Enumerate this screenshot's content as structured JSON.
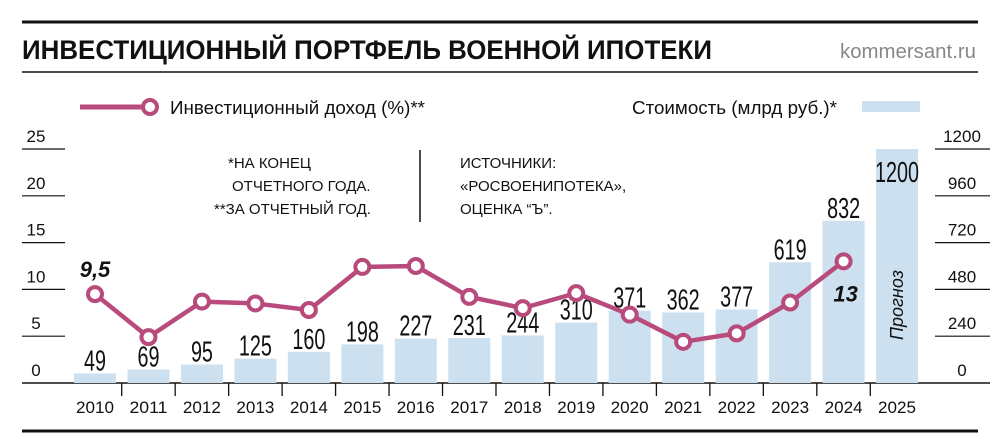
{
  "header": {
    "title": "ИНВЕСТИЦИОННЫЙ ПОРТФЕЛЬ ВОЕННОЙ ИПОТЕКИ",
    "source_site": "kommersant.ru"
  },
  "notes": {
    "footnote_lines": [
      "*НА КОНЕЦ",
      "ОТЧЕТНОГО ГОДА.",
      "**ЗА ОТЧЕТНЫЙ ГОД."
    ],
    "sources_lines": [
      "ИСТОЧНИКИ:",
      "«РОСВОЕНИПОТЕКА»,",
      "ОЦЕНКА “Ъ”."
    ]
  },
  "colors": {
    "line": "#b84a7c",
    "bar": "#cde0ef",
    "text": "#111111"
  },
  "chart_data": {
    "type": "bar+line",
    "title": "ИНВЕСТИЦИОННЫЙ ПОРТФЕЛЬ ВОЕННОЙ ИПОТЕКИ",
    "categories": [
      "2010",
      "2011",
      "2012",
      "2013",
      "2014",
      "2015",
      "2016",
      "2017",
      "2018",
      "2019",
      "2020",
      "2021",
      "2022",
      "2023",
      "2024",
      "2025"
    ],
    "series": [
      {
        "name": "Стоимость (млрд руб.)*",
        "type": "bar",
        "axis": "right",
        "values": [
          49,
          69,
          95,
          125,
          160,
          198,
          227,
          231,
          244,
          310,
          371,
          362,
          377,
          619,
          832,
          1200
        ],
        "labels": [
          "49",
          "69",
          "95",
          "125",
          "160",
          "198",
          "227",
          "231",
          "244",
          "310",
          "371",
          "362",
          "377",
          "619",
          "832",
          "1200"
        ]
      },
      {
        "name": "Инвестиционный доход (%)**",
        "type": "line",
        "axis": "left",
        "values": [
          9.5,
          4.9,
          8.7,
          8.5,
          7.8,
          12.4,
          12.5,
          9.2,
          8.0,
          9.6,
          7.3,
          4.4,
          5.3,
          8.6,
          13,
          null
        ],
        "annotations": [
          {
            "index": 0,
            "text": "9,5"
          },
          {
            "index": 14,
            "text": "13"
          }
        ]
      }
    ],
    "forecast_label": "Прогноз",
    "left_axis": {
      "ticks": [
        "0",
        "5",
        "10",
        "15",
        "20",
        "25"
      ],
      "range": [
        0,
        25
      ]
    },
    "right_axis": {
      "ticks": [
        "0",
        "240",
        "480",
        "720",
        "960",
        "1200"
      ],
      "range": [
        0,
        1200
      ]
    },
    "legend_placement": "top"
  }
}
